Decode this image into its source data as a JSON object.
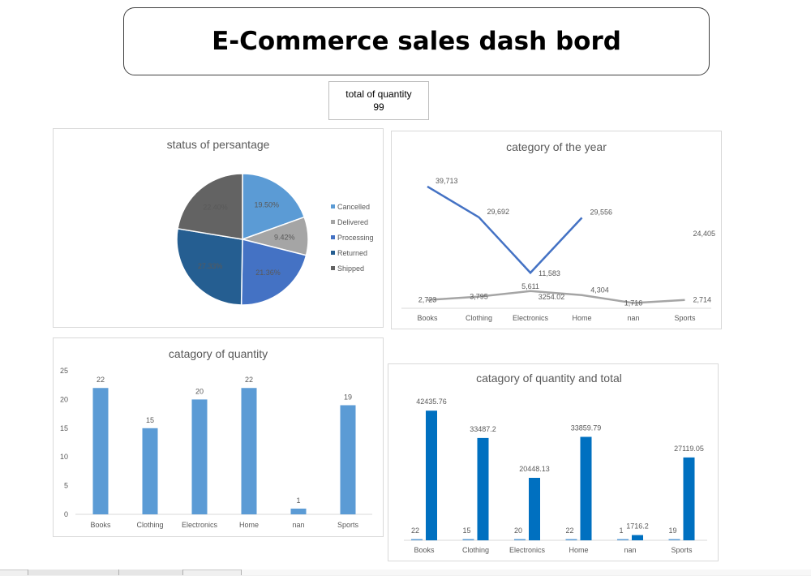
{
  "header": {
    "title": "E-Commerce sales dash bord"
  },
  "kpi": {
    "label": "total of quantity",
    "value": "99"
  },
  "colors": {
    "cancelled": "#5b9bd5",
    "delivered": "#a5a5a5",
    "processing": "#4472c4",
    "returned": "#255e91",
    "shipped": "#636363",
    "bar_light": "#5b9bd5",
    "bar_dark": "#0070c0",
    "line_blue": "#4472c4",
    "line_gray": "#a5a5a5"
  },
  "chart_data": [
    {
      "id": "status",
      "type": "pie",
      "title": "status of persantage",
      "labels": [
        "Cancelled",
        "Delivered",
        "Processing",
        "Returned",
        "Shipped"
      ],
      "values": [
        19.5,
        9.42,
        21.36,
        27.33,
        22.4
      ],
      "value_labels": [
        "19.50%",
        "9.42%",
        "21.36%",
        "27.33%",
        "22.40%"
      ],
      "colors": [
        "#5b9bd5",
        "#a5a5a5",
        "#4472c4",
        "#255e91",
        "#636363"
      ],
      "legend": "right"
    },
    {
      "id": "year",
      "type": "line",
      "title": "category of the year",
      "categories": [
        "Books",
        "Clothing",
        "Electronics",
        "Home",
        "nan",
        "Sports"
      ],
      "series": [
        {
          "values": [
            39713,
            29692,
            11583,
            29556,
            null,
            24405
          ],
          "labels": [
            "39,713",
            "29,692",
            "11,583",
            "29,556",
            "",
            "24,405"
          ],
          "color": "#4472c4"
        },
        {
          "values": [
            2723,
            3795,
            5611,
            4304,
            1716,
            2714
          ],
          "labels": [
            "2,723",
            "3,795",
            "5,611",
            "4,304",
            "1,716",
            "2,714"
          ],
          "color": "#a5a5a5"
        }
      ],
      "extra_label": "3254.02",
      "ylim": [
        0,
        45000
      ]
    },
    {
      "id": "quantity",
      "type": "bar",
      "title": "catagory of quantity",
      "categories": [
        "Books",
        "Clothing",
        "Electronics",
        "Home",
        "nan",
        "Sports"
      ],
      "values": [
        22,
        15,
        20,
        22,
        1,
        19
      ],
      "yticks": [
        "0",
        "5",
        "10",
        "15",
        "20",
        "25"
      ],
      "ylim": [
        0,
        25
      ],
      "color": "#5b9bd5"
    },
    {
      "id": "qty_total",
      "type": "bar",
      "title": "catagory of quantity and total",
      "categories": [
        "Books",
        "Clothing",
        "Electronics",
        "Home",
        "nan",
        "Sports"
      ],
      "series": [
        {
          "values": [
            22,
            15,
            20,
            22,
            1,
            19
          ],
          "labels": [
            "22",
            "15",
            "20",
            "22",
            "1",
            "19"
          ],
          "color": "#5b9bd5"
        },
        {
          "values": [
            42435.76,
            33487.2,
            20448.13,
            33859.79,
            1716.2,
            27119.05
          ],
          "labels": [
            "42435.76",
            "33487.2",
            "20448.13",
            "33859.79",
            "1716.2",
            "27119.05"
          ],
          "color": "#0070c0"
        }
      ],
      "ylim": [
        0,
        47000
      ]
    }
  ]
}
